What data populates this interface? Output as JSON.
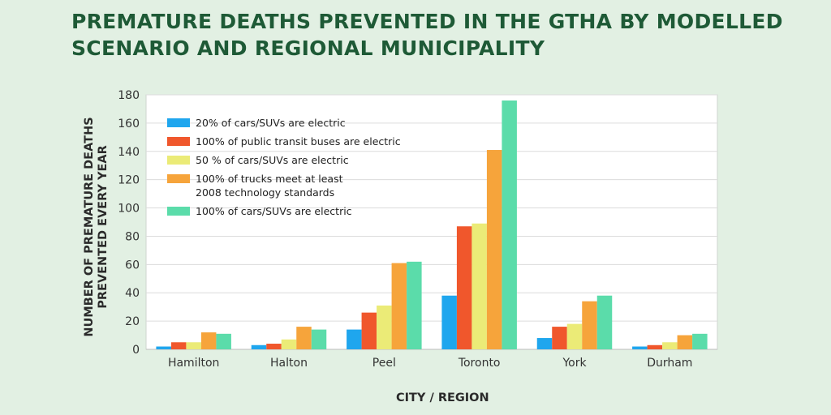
{
  "title_lines": [
    "PREMATURE DEATHS PREVENTED IN THE GTHA BY MODELLED",
    "SCENARIO AND REGIONAL MUNICIPALITY"
  ],
  "chart_data": {
    "type": "bar",
    "xlabel": "CITY / REGION",
    "ylabel_lines": [
      "NUMBER OF PREMATURE DEATHS",
      "PREVENTED EVERY YEAR"
    ],
    "ylim": [
      0,
      180
    ],
    "yticks": [
      0,
      20,
      40,
      60,
      80,
      100,
      120,
      140,
      160,
      180
    ],
    "grid": true,
    "legend_position": "top-left",
    "categories": [
      "Hamilton",
      "Halton",
      "Peel",
      "Toronto",
      "York",
      "Durham"
    ],
    "series": [
      {
        "name_lines": [
          "20% of cars/SUVs are electric"
        ],
        "color": "#1fa6ee",
        "values": [
          2,
          3,
          14,
          38,
          8,
          2
        ]
      },
      {
        "name_lines": [
          "100% of public transit buses are electric"
        ],
        "color": "#f0572c",
        "values": [
          5,
          4,
          26,
          87,
          16,
          3
        ]
      },
      {
        "name_lines": [
          "50 % of cars/SUVs are electric"
        ],
        "color": "#ebeb77",
        "values": [
          5,
          7,
          31,
          89,
          18,
          5
        ]
      },
      {
        "name_lines": [
          "100% of trucks meet at least",
          "2008 technology standards"
        ],
        "color": "#f6a43b",
        "values": [
          12,
          16,
          61,
          141,
          34,
          10
        ]
      },
      {
        "name_lines": [
          "100% of cars/SUVs are electric"
        ],
        "color": "#5bdcaa",
        "values": [
          11,
          14,
          62,
          176,
          38,
          11
        ]
      }
    ]
  }
}
